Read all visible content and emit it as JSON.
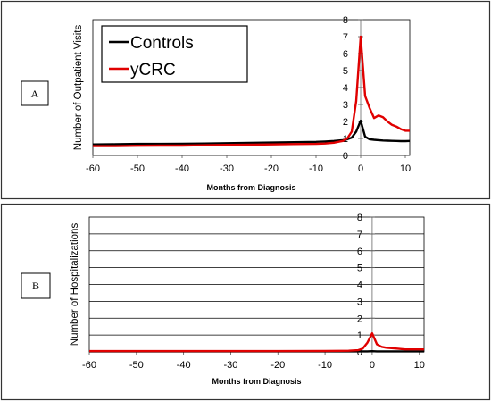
{
  "chart_data": [
    {
      "type": "line",
      "panel_label": "A",
      "xlabel": "Months from Diagnosis",
      "ylabel": "Number of Outpatient Visits",
      "xlim": [
        -60,
        11
      ],
      "ylim": [
        0,
        8
      ],
      "x_ticks": [
        -60,
        -50,
        -40,
        -30,
        -20,
        -10,
        0,
        10
      ],
      "y_ticks": [
        0,
        1,
        2,
        3,
        4,
        5,
        6,
        7,
        8
      ],
      "grid": false,
      "legend": "top-left",
      "series": [
        {
          "name": "Controls",
          "color": "#000000",
          "x": [
            -60,
            -55,
            -50,
            -45,
            -40,
            -35,
            -30,
            -25,
            -20,
            -15,
            -10,
            -8,
            -6,
            -4,
            -3,
            -2,
            -1,
            0,
            1,
            2,
            3,
            4,
            5,
            6,
            7,
            8,
            9,
            10,
            11
          ],
          "y": [
            0.65,
            0.66,
            0.68,
            0.68,
            0.69,
            0.7,
            0.72,
            0.74,
            0.76,
            0.78,
            0.8,
            0.82,
            0.85,
            0.9,
            0.95,
            1.05,
            1.4,
            2.05,
            1.1,
            0.95,
            0.92,
            0.9,
            0.88,
            0.87,
            0.86,
            0.85,
            0.84,
            0.84,
            0.85
          ]
        },
        {
          "name": "yCRC",
          "color": "#e00000",
          "x": [
            -60,
            -55,
            -50,
            -45,
            -40,
            -35,
            -30,
            -25,
            -20,
            -15,
            -10,
            -8,
            -6,
            -4,
            -3,
            -2,
            -1,
            0,
            1,
            2,
            3,
            4,
            5,
            6,
            7,
            8,
            9,
            10,
            11
          ],
          "y": [
            0.55,
            0.55,
            0.57,
            0.58,
            0.58,
            0.6,
            0.62,
            0.63,
            0.65,
            0.67,
            0.68,
            0.7,
            0.75,
            0.85,
            1.0,
            1.4,
            3.2,
            7.0,
            3.5,
            2.8,
            2.2,
            2.35,
            2.25,
            2.0,
            1.8,
            1.7,
            1.55,
            1.45,
            1.45
          ]
        }
      ]
    },
    {
      "type": "line",
      "panel_label": "B",
      "xlabel": "Months from Diagnosis",
      "ylabel": "Number of Hospitalizations",
      "xlim": [
        -60,
        11
      ],
      "ylim": [
        0,
        8
      ],
      "x_ticks": [
        -60,
        -50,
        -40,
        -30,
        -20,
        -10,
        0,
        10
      ],
      "y_ticks": [
        0,
        1,
        2,
        3,
        4,
        5,
        6,
        7,
        8
      ],
      "grid": true,
      "series": [
        {
          "name": "Controls",
          "color": "#000000",
          "x": [
            -60,
            -40,
            -20,
            -10,
            -3,
            -1,
            0,
            1,
            3,
            5,
            8,
            11
          ],
          "y": [
            0.03,
            0.03,
            0.03,
            0.03,
            0.03,
            0.03,
            0.04,
            0.03,
            0.03,
            0.03,
            0.03,
            0.03
          ]
        },
        {
          "name": "yCRC",
          "color": "#e00000",
          "x": [
            -60,
            -40,
            -20,
            -10,
            -5,
            -3,
            -2,
            -1,
            0,
            1,
            2,
            3,
            5,
            7,
            9,
            11
          ],
          "y": [
            0.05,
            0.05,
            0.05,
            0.06,
            0.07,
            0.1,
            0.2,
            0.55,
            1.1,
            0.45,
            0.3,
            0.25,
            0.2,
            0.15,
            0.15,
            0.15
          ]
        }
      ]
    }
  ]
}
